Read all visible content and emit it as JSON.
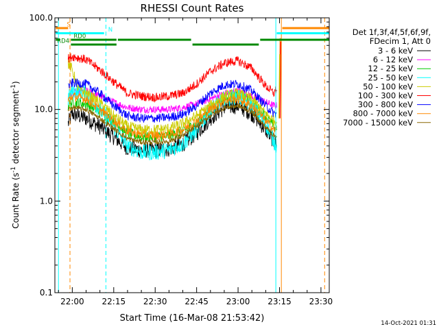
{
  "chart_data": {
    "type": "line",
    "title": "RHESSI Count Rates",
    "xlabel": "Start Time (16-Mar-08 21:53:42)",
    "ylabel_main": "Count Rate (s",
    "ylabel_sup1": "-1",
    "ylabel_mid": " detector segment",
    "ylabel_sup2": "-1",
    "ylabel_end": ")",
    "y_scale": "log",
    "ylim": [
      0.1,
      100
    ],
    "xlim": [
      "21:53:42",
      "23:33:00"
    ],
    "x_ticks": [
      "22:00",
      "22:15",
      "22:30",
      "22:45",
      "23:00",
      "23:15",
      "23:30"
    ],
    "y_ticks": [
      "0.1",
      "1.0",
      "10.0",
      "100.0"
    ],
    "grid": false,
    "legend": {
      "placement": "right",
      "header1": "Det 1f,3f,4f,5f,6f,9f,",
      "header2": "FDecim 1, Att 0",
      "entries": [
        {
          "label": "3 - 6 keV",
          "color": "#000000"
        },
        {
          "label": "6 - 12 keV",
          "color": "#ff00ff"
        },
        {
          "label": "12 - 25 keV",
          "color": "#00cc00"
        },
        {
          "label": "25 - 50 keV",
          "color": "#00ffff"
        },
        {
          "label": "50 - 100 keV",
          "color": "#cccc00"
        },
        {
          "label": "100 - 300 keV",
          "color": "#ff0000"
        },
        {
          "label": "300 - 800 keV",
          "color": "#0000ff"
        },
        {
          "label": "800 - 7000 keV",
          "color": "#ff8800"
        },
        {
          "label": "7000 - 15000 keV",
          "color": "#886600"
        }
      ]
    },
    "series": [
      {
        "name": "3 - 6 keV",
        "color": "#000000",
        "noise": 0.09,
        "points": [
          [
            "21:58:30",
            7
          ],
          [
            "22:00",
            9
          ],
          [
            "22:05",
            8
          ],
          [
            "22:10",
            6.5
          ],
          [
            "22:15",
            5
          ],
          [
            "22:20",
            3.8
          ],
          [
            "22:25",
            3.6
          ],
          [
            "22:30",
            3.6
          ],
          [
            "22:35",
            3.7
          ],
          [
            "22:40",
            4.2
          ],
          [
            "22:45",
            5.5
          ],
          [
            "22:50",
            8
          ],
          [
            "22:55",
            10.5
          ],
          [
            "23:00",
            11
          ],
          [
            "23:05",
            9
          ],
          [
            "23:10",
            6
          ],
          [
            "23:13",
            4.5
          ],
          [
            "23:14",
            4.3
          ]
        ]
      },
      {
        "name": "6 - 12 keV",
        "color": "#ff00ff",
        "noise": 0.04,
        "points": [
          [
            "21:58:30",
            13
          ],
          [
            "22:00",
            15
          ],
          [
            "22:05",
            16
          ],
          [
            "22:10",
            14
          ],
          [
            "22:15",
            12
          ],
          [
            "22:20",
            10.5
          ],
          [
            "22:25",
            10
          ],
          [
            "22:30",
            10
          ],
          [
            "22:35",
            10
          ],
          [
            "22:40",
            10.5
          ],
          [
            "22:45",
            11.5
          ],
          [
            "22:50",
            13
          ],
          [
            "22:55",
            15
          ],
          [
            "23:00",
            16
          ],
          [
            "23:05",
            14
          ],
          [
            "23:10",
            12
          ],
          [
            "23:13",
            11
          ],
          [
            "23:14",
            11
          ]
        ]
      },
      {
        "name": "12 - 25 keV",
        "color": "#00cc00",
        "noise": 0.06,
        "points": [
          [
            "21:58:30",
            11
          ],
          [
            "22:00",
            12
          ],
          [
            "22:05",
            11.5
          ],
          [
            "22:10",
            9.5
          ],
          [
            "22:15",
            7.5
          ],
          [
            "22:20",
            5.5
          ],
          [
            "22:25",
            5
          ],
          [
            "22:30",
            5
          ],
          [
            "22:35",
            5.2
          ],
          [
            "22:40",
            5.8
          ],
          [
            "22:45",
            7
          ],
          [
            "22:50",
            10
          ],
          [
            "22:55",
            13
          ],
          [
            "23:00",
            14
          ],
          [
            "23:05",
            12
          ],
          [
            "23:10",
            8.5
          ],
          [
            "23:13",
            6.5
          ],
          [
            "23:14",
            6.3
          ]
        ]
      },
      {
        "name": "25 - 50 keV",
        "color": "#00ffff",
        "noise": 0.09,
        "points": [
          [
            "21:58:30",
            13
          ],
          [
            "22:00",
            16
          ],
          [
            "22:05",
            15
          ],
          [
            "22:10",
            10
          ],
          [
            "22:15",
            6.5
          ],
          [
            "22:20",
            4
          ],
          [
            "22:25",
            3.4
          ],
          [
            "22:30",
            3.4
          ],
          [
            "22:35",
            3.6
          ],
          [
            "22:40",
            4.2
          ],
          [
            "22:45",
            6
          ],
          [
            "22:50",
            10
          ],
          [
            "22:55",
            13
          ],
          [
            "23:00",
            14
          ],
          [
            "23:05",
            11
          ],
          [
            "23:10",
            7
          ],
          [
            "23:13",
            4.5
          ],
          [
            "23:14",
            3.8
          ]
        ]
      },
      {
        "name": "50 - 100 keV",
        "color": "#cccc00",
        "noise": 0.06,
        "points": [
          [
            "21:58:30",
            32
          ],
          [
            "22:00",
            27
          ],
          [
            "22:02",
            17
          ],
          [
            "22:05",
            15
          ],
          [
            "22:10",
            12
          ],
          [
            "22:15",
            8.5
          ],
          [
            "22:20",
            6.5
          ],
          [
            "22:25",
            6
          ],
          [
            "22:30",
            6
          ],
          [
            "22:35",
            6.2
          ],
          [
            "22:40",
            7
          ],
          [
            "22:45",
            8.5
          ],
          [
            "22:50",
            11
          ],
          [
            "22:55",
            14
          ],
          [
            "23:00",
            15
          ],
          [
            "23:05",
            13
          ],
          [
            "23:10",
            9
          ],
          [
            "23:13",
            7.5
          ],
          [
            "23:14",
            7.5
          ]
        ]
      },
      {
        "name": "100 - 300 keV",
        "color": "#ff0000",
        "noise": 0.05,
        "points": [
          [
            "21:58:30",
            36
          ],
          [
            "22:00",
            38
          ],
          [
            "22:05",
            35
          ],
          [
            "22:10",
            27
          ],
          [
            "22:15",
            20
          ],
          [
            "22:20",
            15
          ],
          [
            "22:25",
            14
          ],
          [
            "22:30",
            13.5
          ],
          [
            "22:35",
            14
          ],
          [
            "22:40",
            15
          ],
          [
            "22:45",
            19
          ],
          [
            "22:50",
            26
          ],
          [
            "22:55",
            32
          ],
          [
            "23:00",
            34
          ],
          [
            "23:05",
            28
          ],
          [
            "23:10",
            18
          ],
          [
            "23:13",
            15
          ],
          [
            "23:14",
            17
          ]
        ]
      },
      {
        "name": "300 - 800 keV",
        "color": "#0000ff",
        "noise": 0.05,
        "points": [
          [
            "21:58:30",
            18
          ],
          [
            "22:00",
            19.5
          ],
          [
            "22:05",
            19
          ],
          [
            "22:10",
            15
          ],
          [
            "22:15",
            11
          ],
          [
            "22:20",
            8.5
          ],
          [
            "22:25",
            8
          ],
          [
            "22:30",
            8
          ],
          [
            "22:35",
            8.2
          ],
          [
            "22:40",
            8.8
          ],
          [
            "22:45",
            11
          ],
          [
            "22:50",
            15
          ],
          [
            "22:55",
            18.5
          ],
          [
            "23:00",
            19
          ],
          [
            "23:05",
            16
          ],
          [
            "23:10",
            11
          ],
          [
            "23:13",
            9
          ],
          [
            "23:14",
            9
          ]
        ]
      },
      {
        "name": "800 - 7000 keV",
        "color": "#ff8800",
        "noise": 0.05,
        "points": [
          [
            "21:58:30",
            12.5
          ],
          [
            "22:00",
            14
          ],
          [
            "22:05",
            13
          ],
          [
            "22:10",
            10
          ],
          [
            "22:15",
            7.5
          ],
          [
            "22:20",
            5.8
          ],
          [
            "22:25",
            5.3
          ],
          [
            "22:30",
            5.2
          ],
          [
            "22:35",
            5.3
          ],
          [
            "22:40",
            6
          ],
          [
            "22:45",
            7.5
          ],
          [
            "22:50",
            10
          ],
          [
            "22:55",
            12.5
          ],
          [
            "23:00",
            13
          ],
          [
            "23:05",
            11
          ],
          [
            "23:10",
            7.5
          ],
          [
            "23:13",
            6
          ],
          [
            "23:14",
            6
          ]
        ]
      },
      {
        "name": "7000 - 15000 keV",
        "color": "#886600",
        "noise": 0.03,
        "points": [
          [
            "21:58:30",
            10
          ],
          [
            "22:00",
            10.5
          ],
          [
            "22:05",
            10
          ],
          [
            "22:10",
            8
          ],
          [
            "22:15",
            6.2
          ],
          [
            "22:20",
            4.8
          ],
          [
            "22:25",
            4.4
          ],
          [
            "22:30",
            4.4
          ],
          [
            "22:35",
            4.5
          ],
          [
            "22:40",
            5.2
          ],
          [
            "22:45",
            6.5
          ],
          [
            "22:50",
            8.6
          ],
          [
            "22:55",
            10.5
          ],
          [
            "23:00",
            11
          ],
          [
            "23:05",
            9.4
          ],
          [
            "23:10",
            6.4
          ],
          [
            "23:13",
            5.2
          ],
          [
            "23:14",
            5.1
          ]
        ]
      }
    ],
    "spikes": [
      {
        "color": "#ff8800",
        "time": "23:15:00",
        "to": 60
      },
      {
        "color": "#ff0000",
        "time": "23:15:10",
        "to": 55
      },
      {
        "color": "#cccc00",
        "time": "23:14:50",
        "to": 40
      }
    ],
    "vertical_lines": [
      {
        "time": "21:55:00",
        "color": "#00ffff",
        "style": "solid"
      },
      {
        "time": "21:59:10",
        "color": "#ff8800",
        "style": "dashed"
      },
      {
        "time": "22:12:10",
        "color": "#00ffff",
        "style": "dashed"
      },
      {
        "time": "23:13:40",
        "color": "#00ffff",
        "style": "solid"
      },
      {
        "time": "23:15:40",
        "color": "#ff8800",
        "style": "solid"
      },
      {
        "time": "23:31:20",
        "color": "#ff8800",
        "style": "dashed"
      }
    ],
    "flag_bars": [
      {
        "label": "S",
        "color": "#ff8800",
        "row": 1,
        "label_time": "21:58:00",
        "segments": [
          [
            "21:54:00",
            "21:58:30"
          ],
          [
            "23:16:00",
            "23:33:00"
          ]
        ]
      },
      {
        "label": "N",
        "color": "#00ffff",
        "row": 2,
        "label_time": "22:13:00",
        "segments": [
          [
            "21:54:00",
            "22:11:30"
          ],
          [
            "23:14:00",
            "23:33:00"
          ]
        ]
      },
      {
        "label": "RD0",
        "color": "#008800",
        "row": 3,
        "label_time": "22:00:30",
        "segments": [
          [
            "21:54:00",
            "21:55:30"
          ],
          [
            "21:59:30",
            "22:16:00"
          ],
          [
            "22:16:30",
            "22:43:00"
          ],
          [
            "23:08:00",
            "23:33:00"
          ]
        ]
      },
      {
        "label": "RD4",
        "color": "#008800",
        "row": 4,
        "label_time": "21:54:30",
        "segments": [
          [
            "21:59:30",
            "22:16:00"
          ],
          [
            "22:43:30",
            "23:07:30"
          ]
        ]
      }
    ],
    "footer_date": "14-Oct-2021 01:31"
  }
}
